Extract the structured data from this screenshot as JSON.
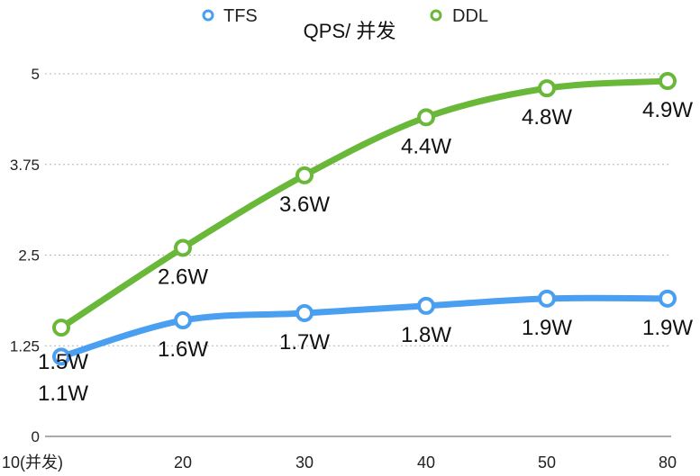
{
  "chart_data": {
    "type": "line",
    "title": "QPS/ 并发",
    "categories": [
      "10(并发)",
      "20",
      "30",
      "40",
      "50",
      "80"
    ],
    "y_ticks": [
      "0",
      "1.25",
      "2.5",
      "3.75",
      "5"
    ],
    "ylim": [
      0,
      5
    ],
    "grid": true,
    "legend_position": "top",
    "series": [
      {
        "name": "TFS",
        "color": "#4a9ff0",
        "values": [
          1.1,
          1.6,
          1.7,
          1.8,
          1.9,
          1.9
        ],
        "labels": [
          "1.1W",
          "1.6W",
          "1.7W",
          "1.8W",
          "1.9W",
          "1.9W"
        ]
      },
      {
        "name": "DDL",
        "color": "#6ab83a",
        "values": [
          1.5,
          2.6,
          3.6,
          4.4,
          4.8,
          4.9
        ],
        "labels": [
          "1.5W",
          "2.6W",
          "3.6W",
          "4.4W",
          "4.8W",
          "4.9W"
        ]
      }
    ]
  }
}
